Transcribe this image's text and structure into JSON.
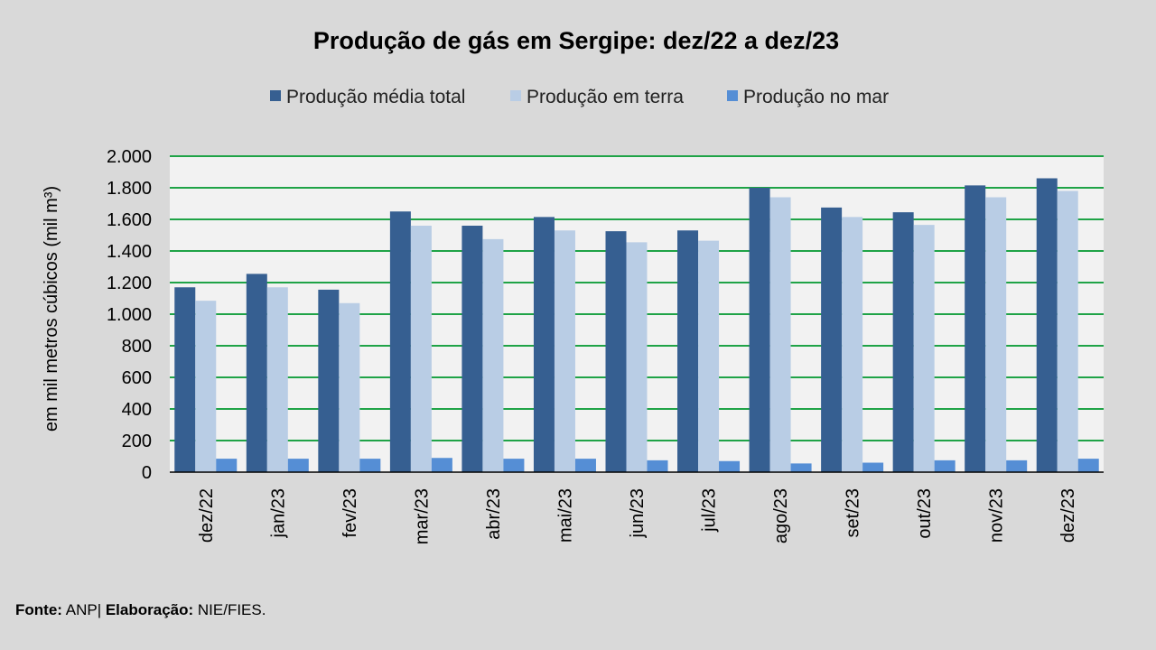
{
  "chart_data": {
    "type": "bar",
    "title": "Produção de gás em Sergipe: dez/22 a dez/23",
    "ylabel": "em mil metros cúbicos (mil m³)",
    "xlabel": "",
    "ylim": [
      0,
      2000
    ],
    "yticks": [
      0,
      200,
      400,
      600,
      800,
      1000,
      1200,
      1400,
      1600,
      1800,
      2000
    ],
    "ytick_labels": [
      "0",
      "200",
      "400",
      "600",
      "800",
      "1.000",
      "1.200",
      "1.400",
      "1.600",
      "1.800",
      "2.000"
    ],
    "grid": true,
    "legend_position": "top",
    "categories": [
      "dez/22",
      "jan/23",
      "fev/23",
      "mar/23",
      "abr/23",
      "mai/23",
      "jun/23",
      "jul/23",
      "ago/23",
      "set/23",
      "out/23",
      "nov/23",
      "dez/23"
    ],
    "series": [
      {
        "name": "Produção média total",
        "color": "#365f91",
        "values": [
          1170,
          1255,
          1155,
          1650,
          1560,
          1615,
          1525,
          1530,
          1800,
          1675,
          1645,
          1815,
          1860
        ]
      },
      {
        "name": "Produção em terra",
        "color": "#b9cde5",
        "values": [
          1085,
          1170,
          1070,
          1560,
          1475,
          1530,
          1455,
          1465,
          1740,
          1615,
          1565,
          1740,
          1780
        ]
      },
      {
        "name": "Produção no mar",
        "color": "#558ed5",
        "values": [
          85,
          85,
          85,
          90,
          85,
          85,
          75,
          70,
          55,
          60,
          75,
          75,
          85
        ]
      }
    ]
  },
  "footer": {
    "source_label": "Fonte:",
    "source_value": "ANP|",
    "elab_label": "Elaboração:",
    "elab_value": "NIE/FIES."
  }
}
